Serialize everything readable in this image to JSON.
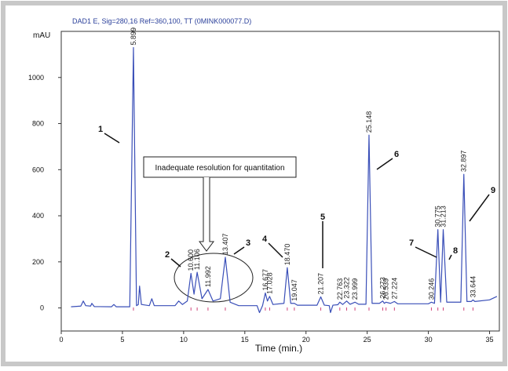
{
  "chart_data": {
    "type": "line",
    "title": "DAD1 E, Sig=280,16 Ref=360,100, TT (0MINK000077.D)",
    "y_label": "mAU",
    "x_label": "Time (min.)",
    "xlim": [
      0,
      35.8
    ],
    "ylim": [
      -100,
      1200
    ],
    "xticks": [
      0,
      5,
      10,
      15,
      20,
      25,
      30,
      35
    ],
    "yticks": [
      0,
      200,
      400,
      600,
      800,
      1000
    ],
    "series": [
      {
        "color": "#3a4fb8",
        "x": [
          0.8,
          1.6,
          1.8,
          2.0,
          2.4,
          2.5,
          2.7,
          4.1,
          4.3,
          4.5,
          5.6,
          5.899,
          6.15,
          6.3,
          6.4,
          6.55,
          7.2,
          7.4,
          7.6,
          9.3,
          9.6,
          9.9,
          10.3,
          10.6,
          10.85,
          11.106,
          11.5,
          11.992,
          12.4,
          13.0,
          13.407,
          13.8,
          14.5,
          16.0,
          16.2,
          16.45,
          16.677,
          16.85,
          17.028,
          17.3,
          18.2,
          18.47,
          18.75,
          19.047,
          19.3,
          20.9,
          21.207,
          21.5,
          21.9,
          22.0,
          22.2,
          22.6,
          22.763,
          23.0,
          23.322,
          23.6,
          23.999,
          24.3,
          24.9,
          25.148,
          25.4,
          26.0,
          26.273,
          26.4,
          26.539,
          26.9,
          27.224,
          27.5,
          30.0,
          30.246,
          30.5,
          30.775,
          31.0,
          31.213,
          31.5,
          32.65,
          32.897,
          33.15,
          33.5,
          33.644,
          33.8,
          35.0,
          35.6
        ],
        "values": [
          5,
          8,
          30,
          10,
          8,
          20,
          6,
          5,
          15,
          5,
          5,
          1130,
          10,
          15,
          95,
          15,
          10,
          40,
          10,
          10,
          30,
          15,
          30,
          150,
          60,
          155,
          40,
          80,
          30,
          40,
          220,
          25,
          10,
          10,
          -20,
          10,
          65,
          30,
          50,
          15,
          20,
          175,
          20,
          20,
          12,
          12,
          48,
          12,
          10,
          -20,
          12,
          14,
          25,
          15,
          30,
          16,
          25,
          16,
          16,
          750,
          20,
          20,
          30,
          20,
          25,
          20,
          28,
          18,
          18,
          25,
          20,
          340,
          25,
          340,
          25,
          25,
          580,
          28,
          28,
          35,
          28,
          35,
          50
        ]
      }
    ],
    "peaks": [
      {
        "time": 5.899,
        "height": 1130
      },
      {
        "time": {
          "value": 10.6,
          "label": "10.600"
        },
        "height": 150
      },
      {
        "time": 11.106,
        "height": 155
      },
      {
        "time": 11.992,
        "height": 80
      },
      {
        "time": 13.407,
        "height": 220
      },
      {
        "time": 16.677,
        "height": 65
      },
      {
        "time": 17.028,
        "height": 50
      },
      {
        "time": {
          "value": 18.47,
          "label": "18.470"
        },
        "height": 175
      },
      {
        "time": 19.047,
        "height": 20
      },
      {
        "time": 21.207,
        "height": 48
      },
      {
        "time": 22.763,
        "height": 25
      },
      {
        "time": 23.322,
        "height": 30
      },
      {
        "time": 23.999,
        "height": 25
      },
      {
        "time": 25.148,
        "height": 750
      },
      {
        "time": 26.273,
        "height": 30
      },
      {
        "time": 26.539,
        "height": 25
      },
      {
        "time": 27.224,
        "height": 28
      },
      {
        "time": 30.246,
        "height": 25
      },
      {
        "time": 30.775,
        "height": 340
      },
      {
        "time": 31.213,
        "height": 340
      },
      {
        "time": 32.897,
        "height": 580
      },
      {
        "time": 33.644,
        "height": 35
      }
    ],
    "callouts": [
      "1",
      "2",
      "3",
      "4",
      "5",
      "6",
      "7",
      "8",
      "9"
    ],
    "annotation": "Inadequate resolution for quantitation"
  }
}
